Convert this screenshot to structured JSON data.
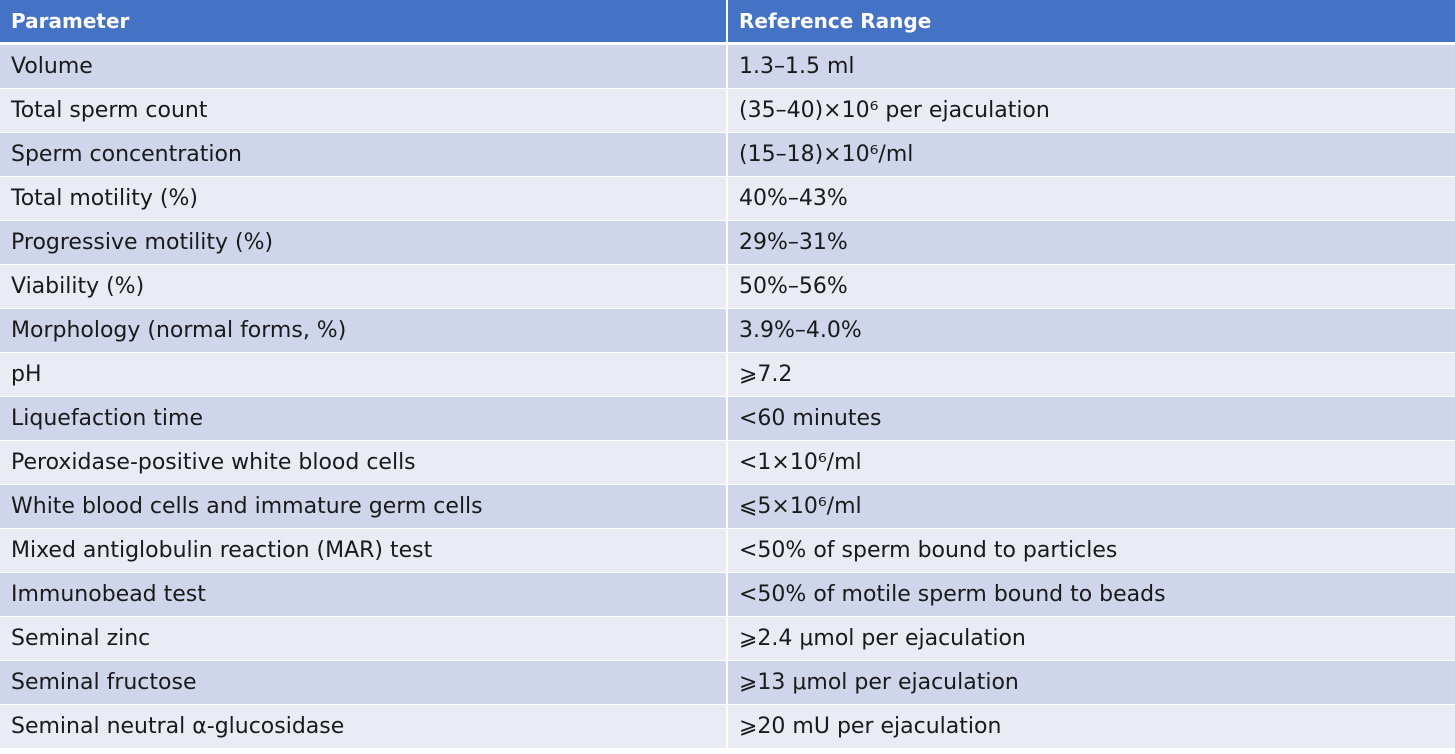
{
  "table": {
    "headers": [
      "Parameter",
      "Reference Range"
    ],
    "rows": [
      [
        "Volume",
        "1.3–1.5 ml"
      ],
      [
        "Total sperm count",
        "(35–40)×10⁶ per ejaculation"
      ],
      [
        "Sperm concentration",
        "(15–18)×10⁶/ml"
      ],
      [
        "Total motility (%)",
        "40%–43%"
      ],
      [
        "Progressive motility (%)",
        "29%–31%"
      ],
      [
        "Viability (%)",
        "50%–56%"
      ],
      [
        "Morphology (normal forms, %)",
        "3.9%–4.0%"
      ],
      [
        "pH",
        "⩾7.2"
      ],
      [
        "Liquefaction time",
        "<60 minutes"
      ],
      [
        "Peroxidase-positive white blood cells",
        "<1×10⁶/ml"
      ],
      [
        "White blood cells and immature germ cells",
        "⩽5×10⁶/ml"
      ],
      [
        "Mixed antiglobulin reaction (MAR) test",
        "<50% of sperm bound to particles"
      ],
      [
        "Immunobead test",
        "<50% of motile sperm bound to beads"
      ],
      [
        "Seminal zinc",
        "⩾2.4 μmol per ejaculation"
      ],
      [
        "Seminal fructose",
        "⩾13 μmol per ejaculation"
      ],
      [
        "Seminal neutral α-glucosidase",
        "⩾20 mU per ejaculation"
      ]
    ]
  },
  "colors": {
    "header_bg": "#4472c4",
    "header_text": "#ffffff",
    "row_odd_bg": "#cfd5ea",
    "row_even_bg": "#e9ebf5"
  }
}
